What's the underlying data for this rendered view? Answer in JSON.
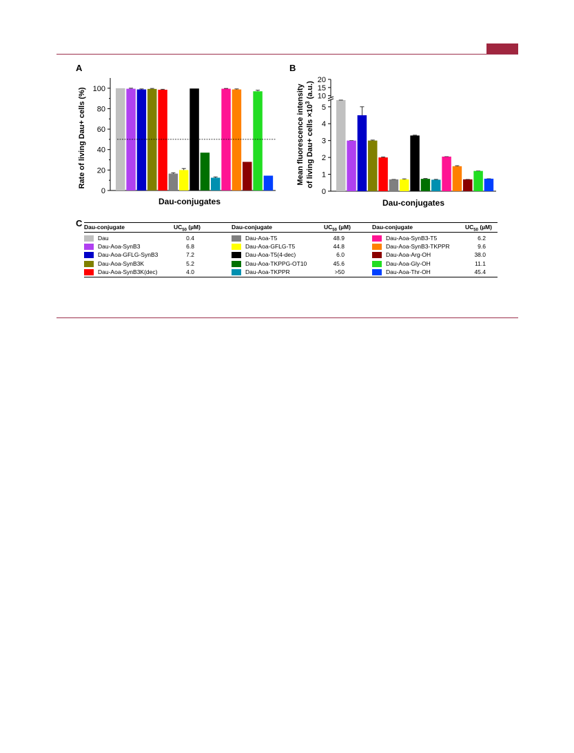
{
  "panel_labels": {
    "a": "A",
    "b": "B",
    "c": "C"
  },
  "colors": {
    "rule": "#9b2d4a",
    "accent_block": "#a0263f",
    "bars": [
      "#c0c0c0",
      "#b040f0",
      "#0000c8",
      "#808000",
      "#ff0000",
      "#808080",
      "#ffff00",
      "#000000",
      "#007000",
      "#0090b0",
      "#ff1493",
      "#ff8000",
      "#8b0000",
      "#22dd22",
      "#0040ff"
    ]
  },
  "chart_data": [
    {
      "type": "bar",
      "panel": "A",
      "xlabel": "Dau-conjugates",
      "ylabel": "Rate of living Dau+ cells (%)",
      "ylim": [
        0,
        110
      ],
      "yticks": [
        "0",
        "20",
        "40",
        "60",
        "80",
        "100"
      ],
      "reference_line": 50,
      "categories": [
        "Dau",
        "Dau-Aoa-SynB3",
        "Dau-Aoa-GFLG-SynB3",
        "Dau-Aoa-SynB3K",
        "Dau-Aoa-SynB3K(dec)",
        "Dau-Aoa-T5",
        "Dau-Aoa-GFLG-T5",
        "Dau-Aoa-T5(4-dec)",
        "Dau-Aoa-TKPPG-OT10",
        "Dau-Aoa-TKPPR",
        "Dau-Aoa-SynB3-T5",
        "Dau-Aoa-SynB3-TKPPR",
        "Dau-Aoa-Arg-OH",
        "Dau-Aoa-Gly-OH",
        "Dau-Aoa-Thr-OH"
      ],
      "values": [
        100,
        99.5,
        98.8,
        99.3,
        98.5,
        16.5,
        20,
        99.7,
        37,
        12.5,
        99.5,
        98.8,
        28,
        97,
        14.5
      ],
      "errors": [
        0,
        0.5,
        0.5,
        0.5,
        0.5,
        0.8,
        1.5,
        0,
        0,
        0.8,
        0.3,
        0.5,
        0,
        1,
        0
      ]
    },
    {
      "type": "bar",
      "panel": "B",
      "xlabel": "Dau-conjugates",
      "ylabel_line1": "Mean fluorescence intensity",
      "ylabel_line2_prefix": "of living Dau+ cells ×10",
      "ylabel_line2_exp": "3",
      "ylabel_line2_suffix": " (a.u.)",
      "y_axis_break": [
        5.4,
        9
      ],
      "ylim": [
        0,
        20
      ],
      "yticks_lower": [
        "0",
        "1",
        "2",
        "3",
        "4",
        "5"
      ],
      "yticks_upper": [
        "10",
        "15",
        "20"
      ],
      "categories": [
        "Dau",
        "Dau-Aoa-SynB3",
        "Dau-Aoa-GFLG-SynB3",
        "Dau-Aoa-SynB3K",
        "Dau-Aoa-SynB3K(dec)",
        "Dau-Aoa-T5",
        "Dau-Aoa-GFLG-T5",
        "Dau-Aoa-T5(4-dec)",
        "Dau-Aoa-TKPPG-OT10",
        "Dau-Aoa-TKPPR",
        "Dau-Aoa-SynB3-T5",
        "Dau-Aoa-SynB3-TKPPR",
        "Dau-Aoa-Arg-OH",
        "Dau-Aoa-Gly-OH",
        "Dau-Aoa-Thr-OH"
      ],
      "values": [
        8.1,
        3.0,
        4.5,
        3.0,
        2.0,
        0.7,
        0.7,
        3.3,
        0.73,
        0.68,
        2.05,
        1.48,
        0.7,
        1.2,
        0.74
      ],
      "errors": [
        0.4,
        0,
        0.5,
        0.03,
        0.03,
        0,
        0.03,
        0.02,
        0.02,
        0.02,
        0,
        0.03,
        0,
        0,
        0
      ]
    }
  ],
  "table": {
    "headers": {
      "conjugate": "Dau-conjugate",
      "uc_prefix": "UC",
      "uc_sub": "50",
      "uc_suffix": " (µM)"
    },
    "columns": [
      [
        {
          "name": "Dau",
          "value": "0.4",
          "color": "#c0c0c0"
        },
        {
          "name": "Dau-Aoa-SynB3",
          "value": "6.8",
          "color": "#b040f0"
        },
        {
          "name": "Dau-Aoa-GFLG-SynB3",
          "value": "7.2",
          "color": "#0000c8"
        },
        {
          "name": "Dau-Aoa-SynB3K",
          "value": "5.2",
          "color": "#808000"
        },
        {
          "name": "Dau-Aoa-SynB3K(dec)",
          "value": "4.0",
          "color": "#ff0000"
        }
      ],
      [
        {
          "name": "Dau-Aoa-T5",
          "value": "48.9",
          "color": "#808080"
        },
        {
          "name": "Dau-Aoa-GFLG-T5",
          "value": "44.8",
          "color": "#ffff00"
        },
        {
          "name": "Dau-Aoa-T5(4-dec)",
          "value": "6.0",
          "color": "#000000"
        },
        {
          "name": "Dau-Aoa-TKPPG-OT10",
          "value": "45.6",
          "color": "#007000"
        },
        {
          "name": "Dau-Aoa-TKPPR",
          "value": ">50",
          "color": "#0090b0"
        }
      ],
      [
        {
          "name": "Dau-Aoa-SynB3-T5",
          "value": "6.2",
          "color": "#ff1493"
        },
        {
          "name": "Dau-Aoa-SynB3-TKPPR",
          "value": "9.6",
          "color": "#ff8000"
        },
        {
          "name": "Dau-Aoa-Arg-OH",
          "value": "38.0",
          "color": "#8b0000"
        },
        {
          "name": "Dau-Aoa-Gly-OH",
          "value": "11.1",
          "color": "#22dd22"
        },
        {
          "name": "Dau-Aoa-Thr-OH",
          "value": "45.4",
          "color": "#0040ff"
        }
      ]
    ]
  }
}
